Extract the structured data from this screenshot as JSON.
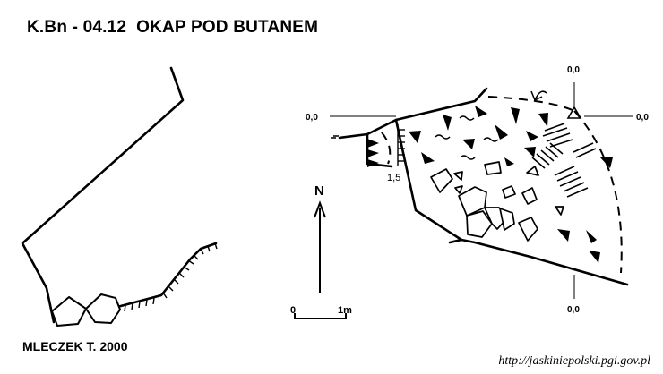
{
  "title": "K.Bn - 04.12  OKAP POD BUTANEM",
  "author": "MLECZEK T. 2000",
  "source_url": "http://jaskiniepolski.pgi.gov.pl",
  "north_label": "N",
  "scale": {
    "start": "0",
    "end": "1m"
  },
  "datum_labels": {
    "left": "0,0",
    "right": "0,0",
    "top": "0,0",
    "bottom": "0,0"
  },
  "depth_label": "1,5"
}
